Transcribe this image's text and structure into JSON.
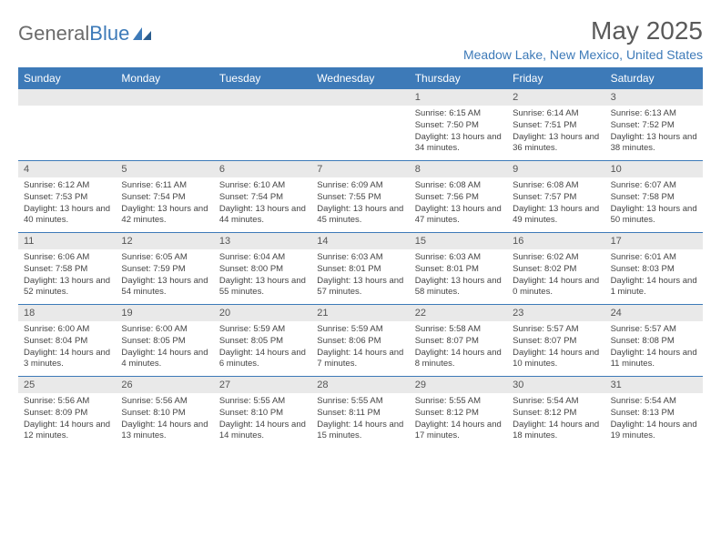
{
  "logo": {
    "text1": "General",
    "text2": "Blue"
  },
  "title": "May 2025",
  "location": "Meadow Lake, New Mexico, United States",
  "colors": {
    "header_bg": "#3d7ab8",
    "daynum_bg": "#e9e9e9",
    "week_border": "#3d7ab8",
    "logo_gray": "#6b6b6b",
    "logo_blue": "#3d7ab8",
    "title_color": "#5a5a5a"
  },
  "dow": [
    "Sunday",
    "Monday",
    "Tuesday",
    "Wednesday",
    "Thursday",
    "Friday",
    "Saturday"
  ],
  "weeks": [
    [
      {
        "n": "",
        "sr": "",
        "ss": "",
        "dl": ""
      },
      {
        "n": "",
        "sr": "",
        "ss": "",
        "dl": ""
      },
      {
        "n": "",
        "sr": "",
        "ss": "",
        "dl": ""
      },
      {
        "n": "",
        "sr": "",
        "ss": "",
        "dl": ""
      },
      {
        "n": "1",
        "sr": "Sunrise: 6:15 AM",
        "ss": "Sunset: 7:50 PM",
        "dl": "Daylight: 13 hours and 34 minutes."
      },
      {
        "n": "2",
        "sr": "Sunrise: 6:14 AM",
        "ss": "Sunset: 7:51 PM",
        "dl": "Daylight: 13 hours and 36 minutes."
      },
      {
        "n": "3",
        "sr": "Sunrise: 6:13 AM",
        "ss": "Sunset: 7:52 PM",
        "dl": "Daylight: 13 hours and 38 minutes."
      }
    ],
    [
      {
        "n": "4",
        "sr": "Sunrise: 6:12 AM",
        "ss": "Sunset: 7:53 PM",
        "dl": "Daylight: 13 hours and 40 minutes."
      },
      {
        "n": "5",
        "sr": "Sunrise: 6:11 AM",
        "ss": "Sunset: 7:54 PM",
        "dl": "Daylight: 13 hours and 42 minutes."
      },
      {
        "n": "6",
        "sr": "Sunrise: 6:10 AM",
        "ss": "Sunset: 7:54 PM",
        "dl": "Daylight: 13 hours and 44 minutes."
      },
      {
        "n": "7",
        "sr": "Sunrise: 6:09 AM",
        "ss": "Sunset: 7:55 PM",
        "dl": "Daylight: 13 hours and 45 minutes."
      },
      {
        "n": "8",
        "sr": "Sunrise: 6:08 AM",
        "ss": "Sunset: 7:56 PM",
        "dl": "Daylight: 13 hours and 47 minutes."
      },
      {
        "n": "9",
        "sr": "Sunrise: 6:08 AM",
        "ss": "Sunset: 7:57 PM",
        "dl": "Daylight: 13 hours and 49 minutes."
      },
      {
        "n": "10",
        "sr": "Sunrise: 6:07 AM",
        "ss": "Sunset: 7:58 PM",
        "dl": "Daylight: 13 hours and 50 minutes."
      }
    ],
    [
      {
        "n": "11",
        "sr": "Sunrise: 6:06 AM",
        "ss": "Sunset: 7:58 PM",
        "dl": "Daylight: 13 hours and 52 minutes."
      },
      {
        "n": "12",
        "sr": "Sunrise: 6:05 AM",
        "ss": "Sunset: 7:59 PM",
        "dl": "Daylight: 13 hours and 54 minutes."
      },
      {
        "n": "13",
        "sr": "Sunrise: 6:04 AM",
        "ss": "Sunset: 8:00 PM",
        "dl": "Daylight: 13 hours and 55 minutes."
      },
      {
        "n": "14",
        "sr": "Sunrise: 6:03 AM",
        "ss": "Sunset: 8:01 PM",
        "dl": "Daylight: 13 hours and 57 minutes."
      },
      {
        "n": "15",
        "sr": "Sunrise: 6:03 AM",
        "ss": "Sunset: 8:01 PM",
        "dl": "Daylight: 13 hours and 58 minutes."
      },
      {
        "n": "16",
        "sr": "Sunrise: 6:02 AM",
        "ss": "Sunset: 8:02 PM",
        "dl": "Daylight: 14 hours and 0 minutes."
      },
      {
        "n": "17",
        "sr": "Sunrise: 6:01 AM",
        "ss": "Sunset: 8:03 PM",
        "dl": "Daylight: 14 hours and 1 minute."
      }
    ],
    [
      {
        "n": "18",
        "sr": "Sunrise: 6:00 AM",
        "ss": "Sunset: 8:04 PM",
        "dl": "Daylight: 14 hours and 3 minutes."
      },
      {
        "n": "19",
        "sr": "Sunrise: 6:00 AM",
        "ss": "Sunset: 8:05 PM",
        "dl": "Daylight: 14 hours and 4 minutes."
      },
      {
        "n": "20",
        "sr": "Sunrise: 5:59 AM",
        "ss": "Sunset: 8:05 PM",
        "dl": "Daylight: 14 hours and 6 minutes."
      },
      {
        "n": "21",
        "sr": "Sunrise: 5:59 AM",
        "ss": "Sunset: 8:06 PM",
        "dl": "Daylight: 14 hours and 7 minutes."
      },
      {
        "n": "22",
        "sr": "Sunrise: 5:58 AM",
        "ss": "Sunset: 8:07 PM",
        "dl": "Daylight: 14 hours and 8 minutes."
      },
      {
        "n": "23",
        "sr": "Sunrise: 5:57 AM",
        "ss": "Sunset: 8:07 PM",
        "dl": "Daylight: 14 hours and 10 minutes."
      },
      {
        "n": "24",
        "sr": "Sunrise: 5:57 AM",
        "ss": "Sunset: 8:08 PM",
        "dl": "Daylight: 14 hours and 11 minutes."
      }
    ],
    [
      {
        "n": "25",
        "sr": "Sunrise: 5:56 AM",
        "ss": "Sunset: 8:09 PM",
        "dl": "Daylight: 14 hours and 12 minutes."
      },
      {
        "n": "26",
        "sr": "Sunrise: 5:56 AM",
        "ss": "Sunset: 8:10 PM",
        "dl": "Daylight: 14 hours and 13 minutes."
      },
      {
        "n": "27",
        "sr": "Sunrise: 5:55 AM",
        "ss": "Sunset: 8:10 PM",
        "dl": "Daylight: 14 hours and 14 minutes."
      },
      {
        "n": "28",
        "sr": "Sunrise: 5:55 AM",
        "ss": "Sunset: 8:11 PM",
        "dl": "Daylight: 14 hours and 15 minutes."
      },
      {
        "n": "29",
        "sr": "Sunrise: 5:55 AM",
        "ss": "Sunset: 8:12 PM",
        "dl": "Daylight: 14 hours and 17 minutes."
      },
      {
        "n": "30",
        "sr": "Sunrise: 5:54 AM",
        "ss": "Sunset: 8:12 PM",
        "dl": "Daylight: 14 hours and 18 minutes."
      },
      {
        "n": "31",
        "sr": "Sunrise: 5:54 AM",
        "ss": "Sunset: 8:13 PM",
        "dl": "Daylight: 14 hours and 19 minutes."
      }
    ]
  ]
}
